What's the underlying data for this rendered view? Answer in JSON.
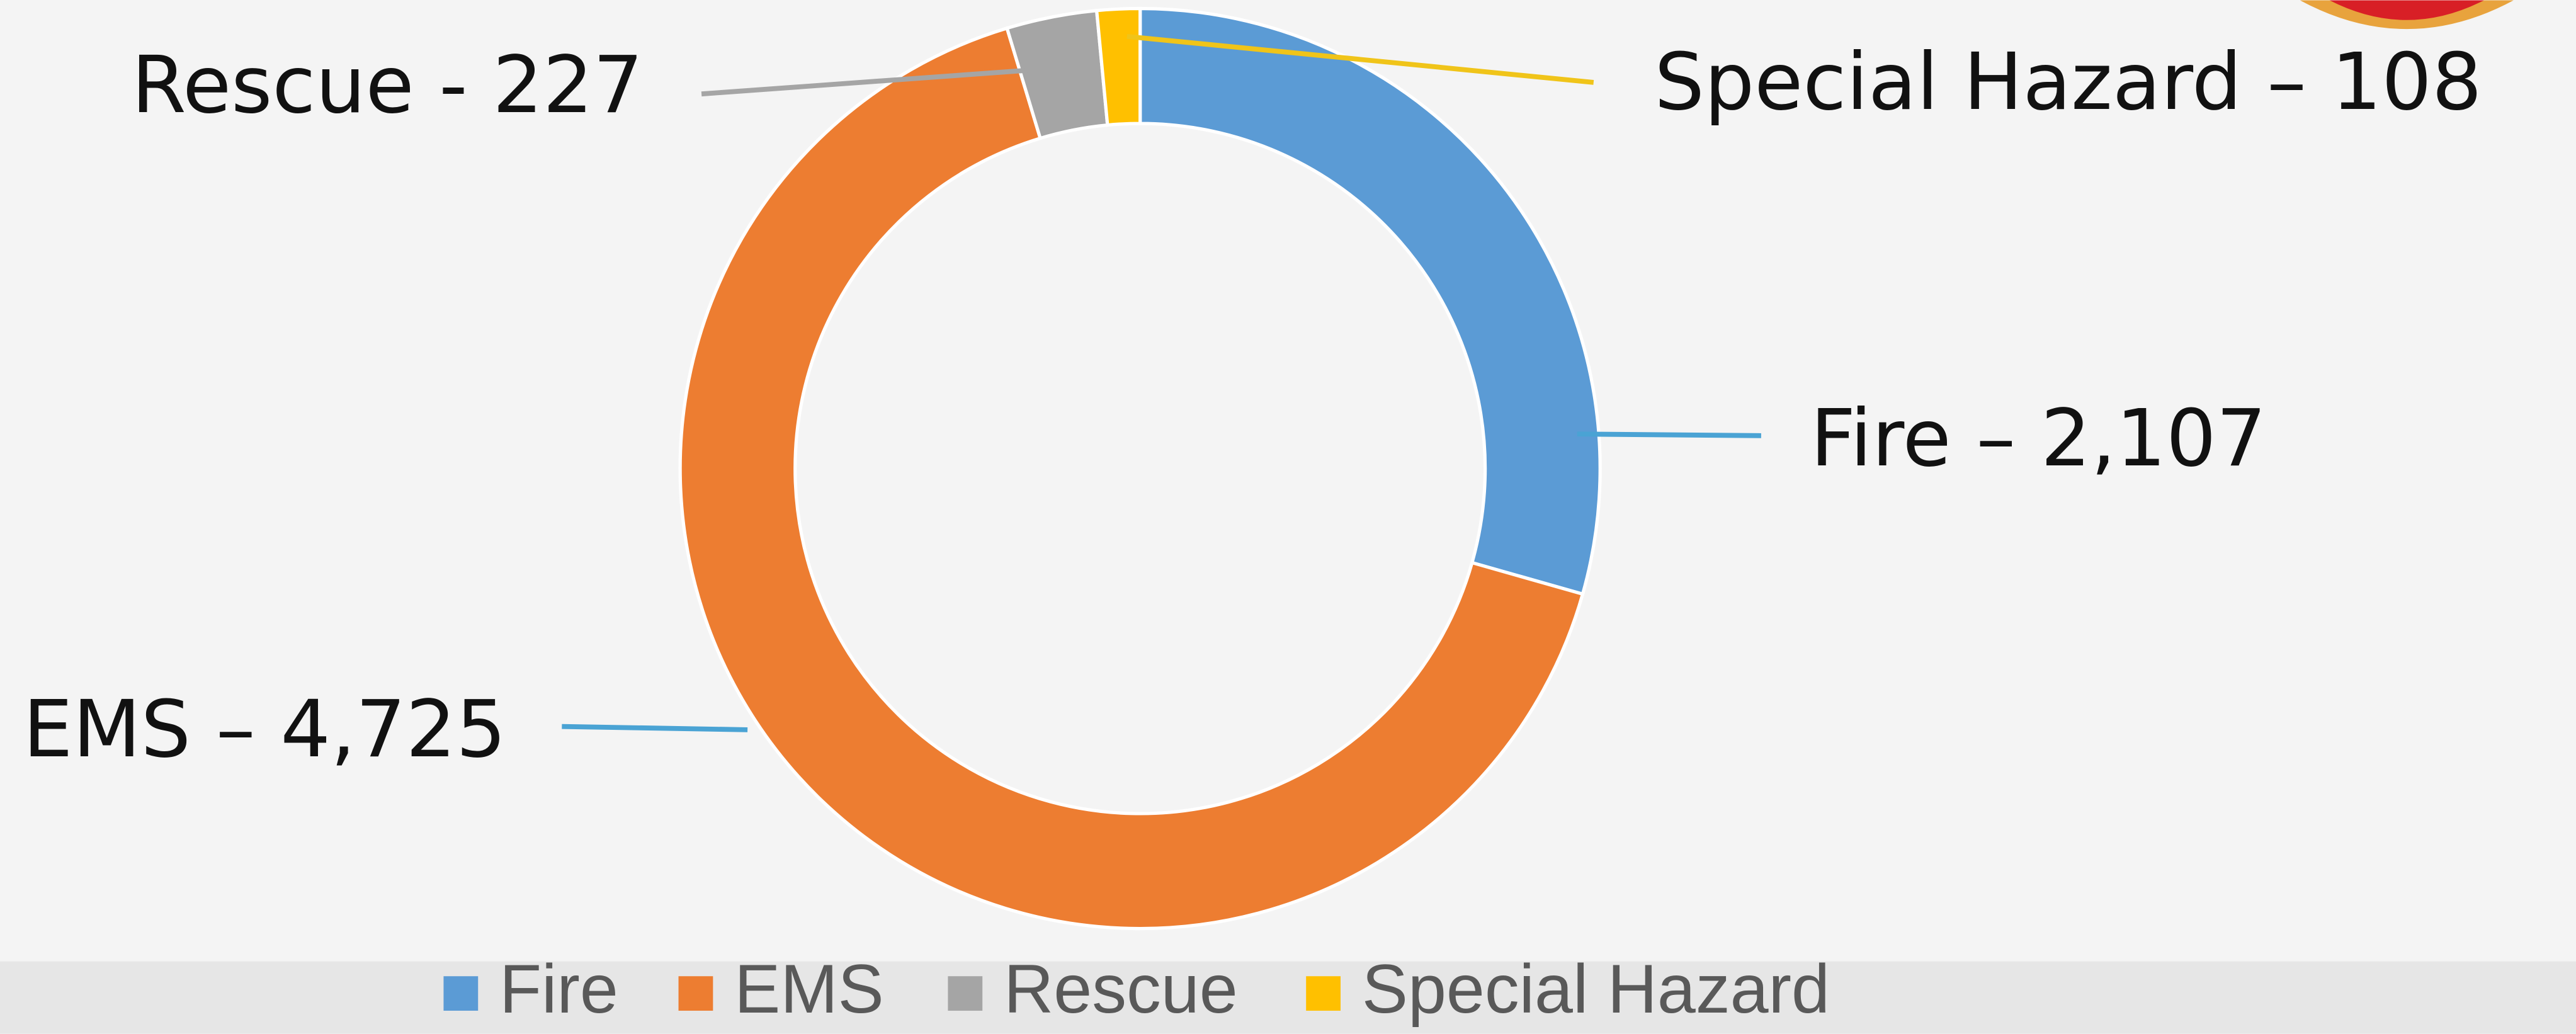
{
  "chart_data": {
    "type": "donut",
    "categories": [
      "Fire",
      "EMS",
      "Rescue",
      "Special Hazard"
    ],
    "values": [
      2107,
      4725,
      227,
      108
    ],
    "value_labels": [
      "Fire – 2,107",
      "EMS – 4,725",
      "Rescue - 227",
      "Special Hazard – 108"
    ],
    "colors": [
      "#5b9bd5",
      "#ed7d31",
      "#a5a5a5",
      "#ffc000"
    ],
    "legend": "bottom"
  }
}
